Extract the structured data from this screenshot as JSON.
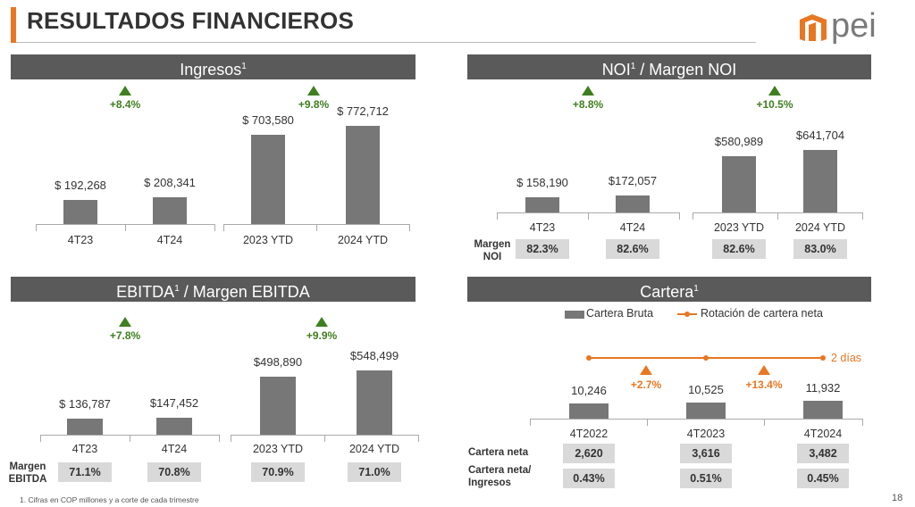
{
  "title": "RESULTADOS FINANCIEROS",
  "logo_text": "pei",
  "footnote": "1.    Cifras en COP millones y a corte de cada trimestre",
  "page_number": "18",
  "colors": {
    "accent": "#e87722",
    "header_bg": "#5a5a5a",
    "bar": "#777777",
    "growth": "#3f7f1f",
    "box": "#d9d9d9"
  },
  "panels": {
    "ingresos": {
      "title": "Ingresos",
      "sup": "1"
    },
    "noi": {
      "title": "NOI",
      "sup": "1",
      "title_rest": " / Margen NOI",
      "row_label": "Margen\nNOI"
    },
    "ebitda": {
      "title": "EBITDA",
      "sup": "1",
      "title_rest": " / Margen EBITDA",
      "row_label": "Margen\nEBITDA"
    },
    "cartera": {
      "title": "Cartera",
      "sup": "1",
      "legend_bar": "Cartera Bruta",
      "legend_line": "Rotación de cartera neta",
      "line_label": "2 días",
      "row1_label": "Cartera neta",
      "row2_label": "Cartera neta/\nIngresos"
    }
  },
  "chart_data": [
    {
      "type": "bar",
      "title": "Ingresos",
      "categories": [
        "4T23",
        "4T24",
        "2023 YTD",
        "2024 YTD"
      ],
      "values": [
        192268,
        208341,
        703580,
        772712
      ],
      "value_labels": [
        "$ 192,268",
        "$ 208,341",
        "$ 703,580",
        "$ 772,712"
      ],
      "growth": [
        "+8.4%",
        "+9.8%"
      ]
    },
    {
      "type": "bar",
      "title": "NOI / Margen NOI",
      "categories": [
        "4T23",
        "4T24",
        "2023 YTD",
        "2024 YTD"
      ],
      "values": [
        158190,
        172057,
        580989,
        641704
      ],
      "value_labels": [
        "$ 158,190",
        "$172,057",
        "$580,989",
        "$641,704"
      ],
      "growth": [
        "+8.8%",
        "+10.5%"
      ],
      "margins": [
        "82.3%",
        "82.6%",
        "82.6%",
        "83.0%"
      ]
    },
    {
      "type": "bar",
      "title": "EBITDA / Margen EBITDA",
      "categories": [
        "4T23",
        "4T24",
        "2023 YTD",
        "2024 YTD"
      ],
      "values": [
        136787,
        147452,
        498890,
        548499
      ],
      "value_labels": [
        "$ 136,787",
        "$147,452",
        "$498,890",
        "$548,499"
      ],
      "growth": [
        "+7.8%",
        "+9.9%"
      ],
      "margins": [
        "71.1%",
        "70.8%",
        "70.9%",
        "71.0%"
      ]
    },
    {
      "type": "bar",
      "title": "Cartera",
      "categories": [
        "4T2022",
        "4T2023",
        "4T2024"
      ],
      "values": [
        10246,
        10525,
        11932
      ],
      "value_labels": [
        "10,246",
        "10,525",
        "11,932"
      ],
      "growth": [
        "+2.7%",
        "+13.4%"
      ],
      "line_series": {
        "name": "Rotación de cartera neta",
        "values": [
          2,
          2,
          2
        ]
      },
      "cartera_neta": [
        "2,620",
        "3,616",
        "3,482"
      ],
      "cartera_neta_ingresos": [
        "0.43%",
        "0.51%",
        "0.45%"
      ]
    }
  ]
}
